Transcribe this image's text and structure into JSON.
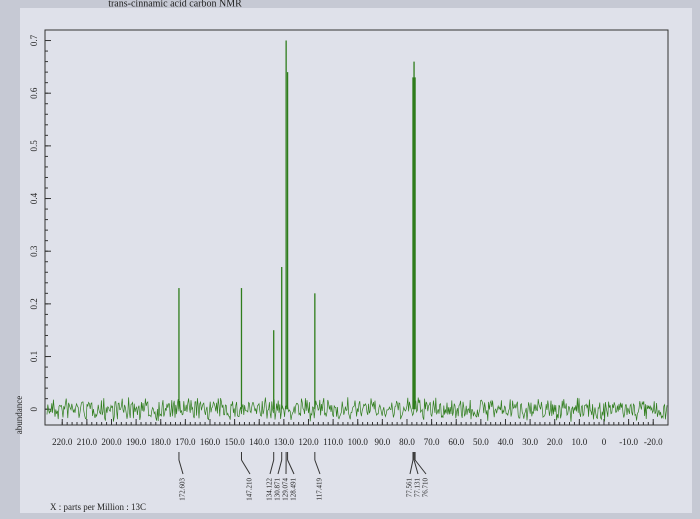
{
  "chart_data": {
    "type": "nmr-stick",
    "title": "trans-cinnamic acid carbon NMR",
    "y_label": "abundance",
    "x_label": "X : parts per Million : 13C",
    "color": "#2f7d1c",
    "x": [
      172.603,
      147.21,
      134.122,
      130.871,
      129.074,
      128.491,
      117.419,
      77.561,
      77.131,
      76.71
    ],
    "x_labels": [
      "172.603",
      "147.210",
      "134.122",
      "130.871",
      "129.074",
      "128.491",
      "117.419",
      "77.561",
      "77.131",
      "76.710"
    ],
    "values": [
      0.23,
      0.23,
      0.15,
      0.27,
      0.7,
      0.64,
      0.22,
      0.63,
      0.66,
      0.63
    ],
    "xlim": [
      227,
      -26
    ],
    "ylim": [
      -0.03,
      0.72
    ],
    "xticks": [
      {
        "value": 220,
        "label": "220.0"
      },
      {
        "value": 210,
        "label": "210.0"
      },
      {
        "value": 200,
        "label": "200.0"
      },
      {
        "value": 190,
        "label": "190.0"
      },
      {
        "value": 180,
        "label": "180.0"
      },
      {
        "value": 170,
        "label": "170.0"
      },
      {
        "value": 160,
        "label": "160.0"
      },
      {
        "value": 150,
        "label": "150.0"
      },
      {
        "value": 140,
        "label": "140.0"
      },
      {
        "value": 130,
        "label": "130.0"
      },
      {
        "value": 120,
        "label": "120.0"
      },
      {
        "value": 110,
        "label": "110.0"
      },
      {
        "value": 100,
        "label": "100.0"
      },
      {
        "value": 90,
        "label": "90.0"
      },
      {
        "value": 80,
        "label": "80.0"
      },
      {
        "value": 70,
        "label": "70.0"
      },
      {
        "value": 60,
        "label": "60.0"
      },
      {
        "value": 50,
        "label": "50.0"
      },
      {
        "value": 40,
        "label": "40.0"
      },
      {
        "value": 30,
        "label": "30.0"
      },
      {
        "value": 20,
        "label": "20.0"
      },
      {
        "value": 10,
        "label": "10.0"
      },
      0,
      {
        "value": -10,
        "label": "-10.0"
      },
      {
        "value": -20,
        "label": "-20.0"
      }
    ],
    "yticks": [
      0,
      0.1,
      0.2,
      0.3,
      0.4,
      0.5,
      0.6,
      0.7
    ]
  }
}
